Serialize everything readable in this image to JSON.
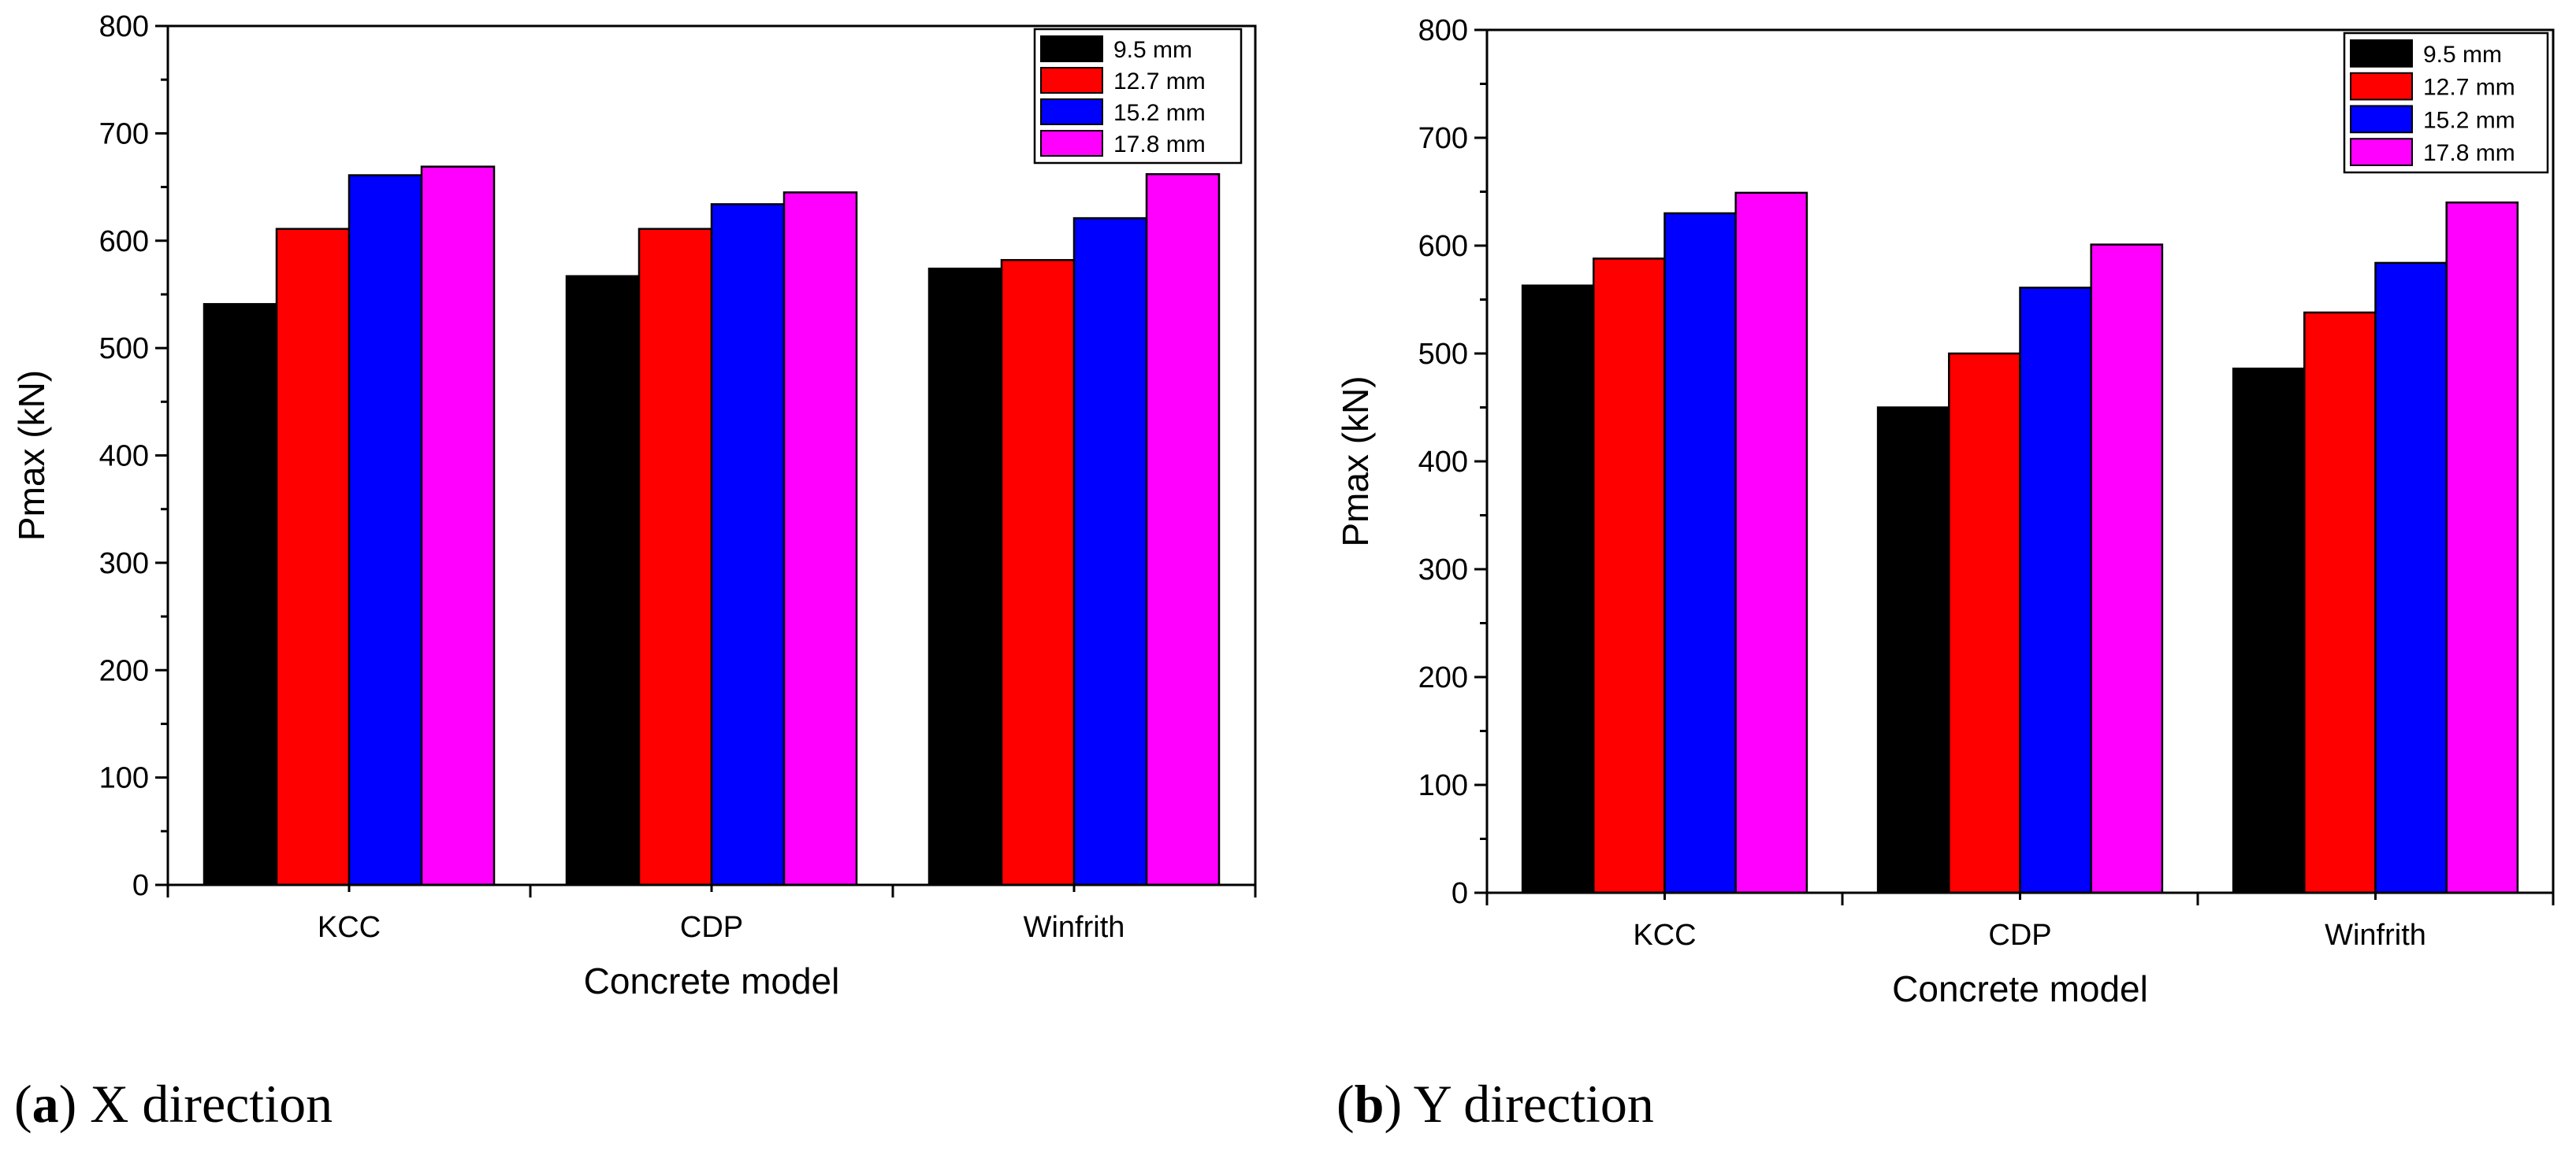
{
  "chart_data": [
    {
      "type": "bar",
      "panel": "a",
      "caption_letter": "a",
      "caption_text": "X direction",
      "categories": [
        "KCC",
        "CDP",
        "Winfrith"
      ],
      "series": [
        {
          "name": "9.5 mm",
          "color": "#000000",
          "values": [
            541,
            567,
            574
          ]
        },
        {
          "name": "12.7 mm",
          "color": "#ff0000",
          "values": [
            611,
            611,
            582
          ]
        },
        {
          "name": "15.2 mm",
          "color": "#0000ff",
          "values": [
            661,
            634,
            621
          ]
        },
        {
          "name": "17.8 mm",
          "color": "#ff00ff",
          "values": [
            669,
            645,
            662
          ]
        }
      ],
      "xlabel": "Concrete model",
      "ylabel": "Pmax (kN)",
      "ylim": [
        0,
        800
      ],
      "yticks": [
        0,
        100,
        200,
        300,
        400,
        500,
        600,
        700,
        800
      ],
      "legend_position": "top-right"
    },
    {
      "type": "bar",
      "panel": "b",
      "caption_letter": "b",
      "caption_text": "Y direction",
      "categories": [
        "KCC",
        "CDP",
        "Winfrith"
      ],
      "series": [
        {
          "name": "9.5 mm",
          "color": "#000000",
          "values": [
            563,
            450,
            486
          ]
        },
        {
          "name": "12.7 mm",
          "color": "#ff0000",
          "values": [
            588,
            500,
            538
          ]
        },
        {
          "name": "15.2 mm",
          "color": "#0000ff",
          "values": [
            630,
            561,
            584
          ]
        },
        {
          "name": "17.8 mm",
          "color": "#ff00ff",
          "values": [
            649,
            601,
            640
          ]
        }
      ],
      "xlabel": "Concrete model",
      "ylabel": "Pmax (kN)",
      "ylim": [
        0,
        800
      ],
      "yticks": [
        0,
        100,
        200,
        300,
        400,
        500,
        600,
        700,
        800
      ],
      "legend_position": "top-right"
    }
  ]
}
